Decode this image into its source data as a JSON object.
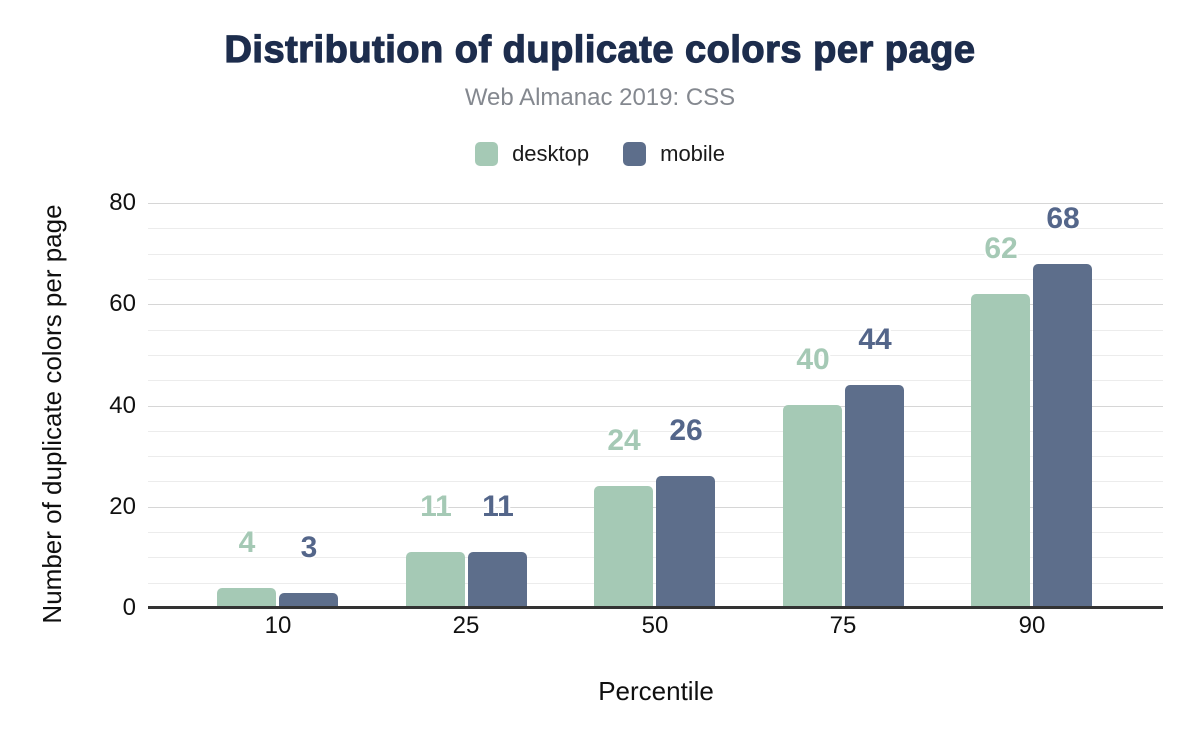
{
  "chart_data": {
    "type": "bar",
    "title": "Distribution of duplicate colors per page",
    "subtitle": "Web Almanac 2019: CSS",
    "xlabel": "Percentile",
    "ylabel": "Number of duplicate colors per page",
    "categories": [
      "10",
      "25",
      "50",
      "75",
      "90"
    ],
    "series": [
      {
        "name": "desktop",
        "values": [
          4,
          11,
          24,
          40,
          62
        ],
        "color": "#a5c9b5",
        "label_color": "#a5c9b5"
      },
      {
        "name": "mobile",
        "values": [
          3,
          11,
          26,
          44,
          68
        ],
        "color": "#5d6e8b",
        "label_color": "#54668a"
      }
    ],
    "ylim": [
      0,
      80
    ],
    "y_ticks": [
      0,
      20,
      40,
      60,
      80
    ],
    "grid_minor_step": 5,
    "grid": true,
    "legend_position": "top",
    "colors": {
      "title": "#1d2d4d",
      "subtitle": "#84888f",
      "axis_text": "#111111",
      "grid_minor": "#ececec",
      "grid_major": "#d6d6d6",
      "baseline": "#333333",
      "background": "#ffffff"
    }
  }
}
